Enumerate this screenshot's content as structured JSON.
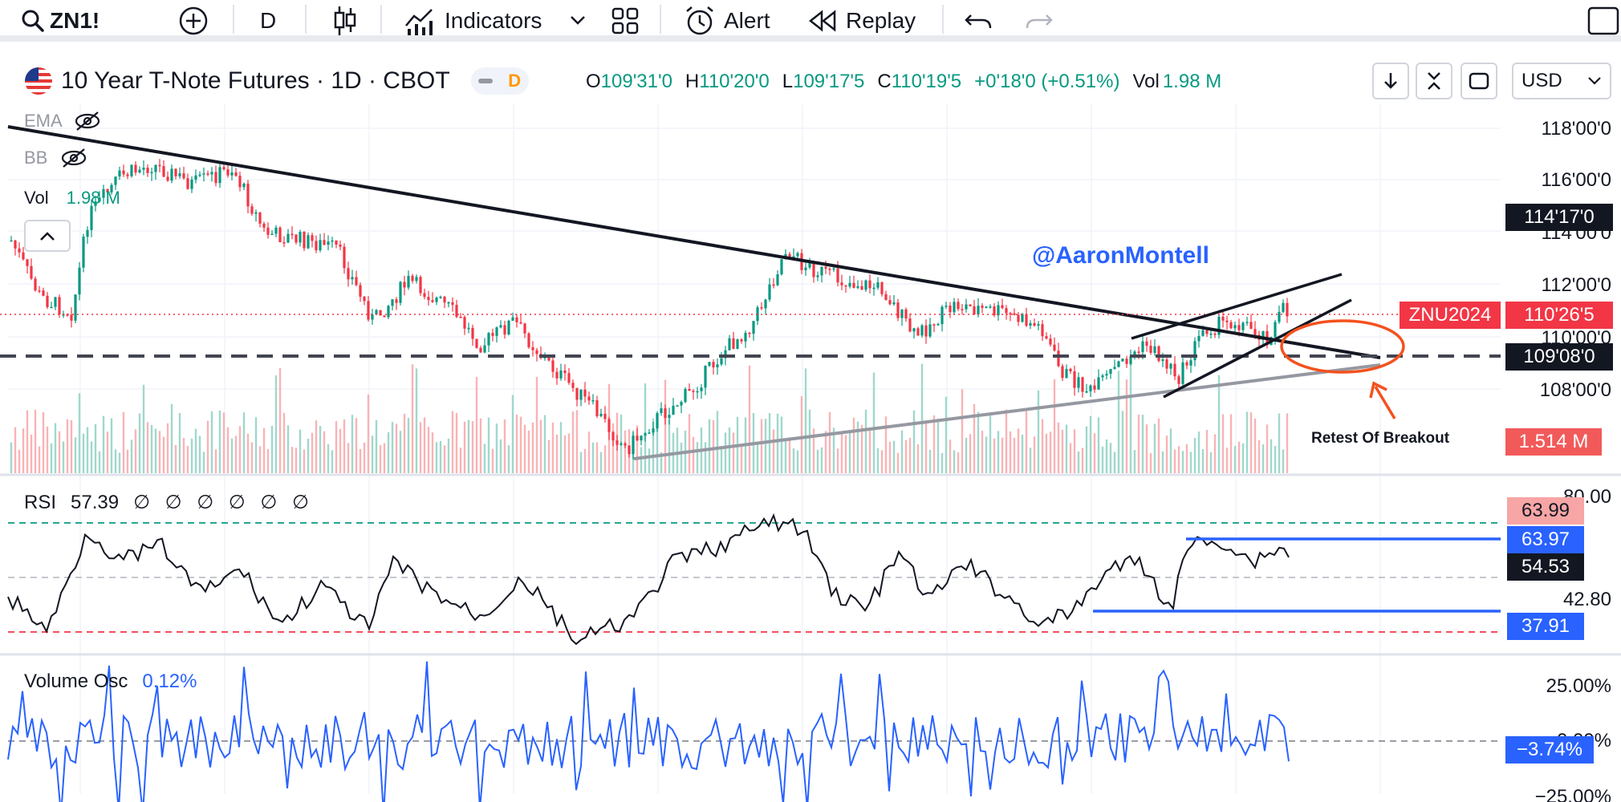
{
  "toolbar": {
    "symbol": "ZN1!",
    "interval": "D",
    "indicators_label": "Indicators",
    "alert_label": "Alert",
    "replay_label": "Replay"
  },
  "header": {
    "title": "10 Year T-Note Futures · 1D · CBOT",
    "delay_badge": "D",
    "open_label": "O",
    "open": "109'31'0",
    "high_label": "H",
    "high": "110'20'0",
    "low_label": "L",
    "low": "109'17'5",
    "close_label": "C",
    "close": "110'19'5",
    "change": "+0'18'0 (+0.51%)",
    "vol_label": "Vol",
    "vol": "1.98 M",
    "currency": "USD"
  },
  "indicators": {
    "ema_label": "EMA",
    "bb_label": "BB",
    "vol_label": "Vol",
    "vol_value": "1.98 M"
  },
  "annotations": {
    "watermark": "@AaronMontell",
    "retest": "Retest Of Breakout"
  },
  "price_axis": {
    "ticks": [
      "118'00'0",
      "116'00'0",
      "114'00'0",
      "112'00'0",
      "110'00'0",
      "108'00'0"
    ],
    "tag_dark_1": "114'17'0",
    "tag_symbol": "ZNU2024",
    "tag_last": "110'26'5",
    "tag_dark_2": "109'08'0",
    "tag_volume": "1.514 M"
  },
  "rsi": {
    "label": "RSI",
    "value": "57.39",
    "settings": "∅ ∅ ∅ ∅ ∅ ∅",
    "tick_top": "80.00",
    "tick_mid": "42.80",
    "tag_1": "63.99",
    "tag_2": "63.97",
    "tag_3": "54.53",
    "tag_4": "37.91"
  },
  "vosc": {
    "label": "Volume Osc",
    "value": "0.12%",
    "tick_top": "25.00%",
    "tick_mid": "0.00%",
    "tick_bottom": "−25.00%",
    "tag": "−3.74%"
  },
  "colors": {
    "up": "#089981",
    "down": "#f23645",
    "blue": "#2962ff",
    "annotation_orange": "#f4511e"
  }
}
